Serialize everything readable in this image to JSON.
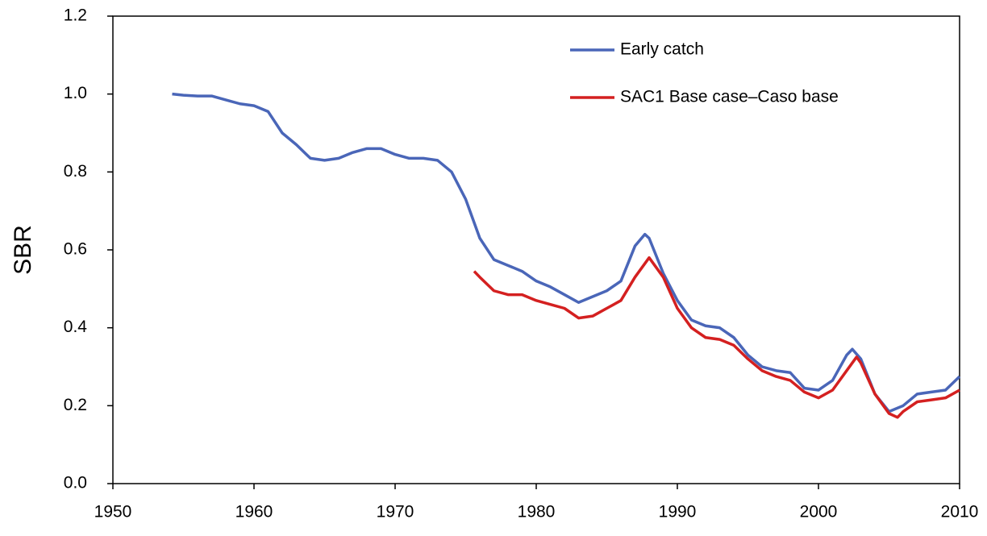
{
  "chart_data": {
    "type": "line",
    "ylabel": "SBR",
    "xlim": [
      1950,
      2010
    ],
    "xticks": [
      1950,
      1960,
      1970,
      1980,
      1990,
      2000,
      2010
    ],
    "ylim": [
      0,
      1.2
    ],
    "yticks": [
      {
        "value": 0,
        "label": "0.0"
      },
      0.2,
      0.4,
      0.6,
      0.8,
      {
        "value": 1,
        "label": "1.0"
      },
      1.2
    ],
    "legend": "upper right",
    "grid": false,
    "series": [
      {
        "name": "Early catch",
        "color": "#4a66b8",
        "x": [
          1954.2,
          1955,
          1956,
          1957,
          1958,
          1959,
          1960,
          1961,
          1962,
          1963,
          1964,
          1965,
          1966,
          1967,
          1968,
          1969,
          1970,
          1971,
          1972,
          1973,
          1974,
          1975,
          1976,
          1977,
          1978,
          1979,
          1980,
          1981,
          1982,
          1983,
          1984,
          1985,
          1986,
          1987,
          1987.7,
          1988,
          1989,
          1990,
          1991,
          1992,
          1993,
          1994,
          1995,
          1996,
          1997,
          1998,
          1999,
          2000,
          2001,
          2002,
          2002.4,
          2003,
          2004,
          2005,
          2006,
          2007,
          2008,
          2009,
          2010
        ],
        "values": [
          1.0,
          0.997,
          0.995,
          0.995,
          0.985,
          0.975,
          0.97,
          0.955,
          0.9,
          0.87,
          0.835,
          0.83,
          0.835,
          0.85,
          0.86,
          0.86,
          0.845,
          0.835,
          0.835,
          0.83,
          0.8,
          0.73,
          0.63,
          0.575,
          0.56,
          0.545,
          0.52,
          0.505,
          0.485,
          0.465,
          0.48,
          0.495,
          0.52,
          0.61,
          0.64,
          0.63,
          0.54,
          0.47,
          0.42,
          0.405,
          0.4,
          0.375,
          0.33,
          0.3,
          0.29,
          0.285,
          0.245,
          0.24,
          0.265,
          0.33,
          0.345,
          0.32,
          0.23,
          0.185,
          0.2,
          0.23,
          0.235,
          0.24,
          0.275
        ]
      },
      {
        "name": "SAC1 Base case–Caso base",
        "color": "#d42020",
        "x": [
          1975.6,
          1976,
          1977,
          1978,
          1979,
          1980,
          1981,
          1982,
          1983,
          1984,
          1985,
          1986,
          1987,
          1988,
          1989,
          1990,
          1991,
          1992,
          1993,
          1994,
          1995,
          1996,
          1997,
          1998,
          1999,
          2000,
          2001,
          2002,
          2002.7,
          2003,
          2004,
          2005,
          2005.6,
          2006,
          2007,
          2008,
          2009,
          2010
        ],
        "values": [
          0.545,
          0.53,
          0.495,
          0.485,
          0.485,
          0.47,
          0.46,
          0.45,
          0.425,
          0.43,
          0.45,
          0.47,
          0.53,
          0.58,
          0.53,
          0.45,
          0.4,
          0.375,
          0.37,
          0.355,
          0.32,
          0.29,
          0.275,
          0.265,
          0.235,
          0.22,
          0.24,
          0.29,
          0.325,
          0.31,
          0.23,
          0.18,
          0.17,
          0.185,
          0.21,
          0.215,
          0.22,
          0.24
        ]
      }
    ]
  }
}
